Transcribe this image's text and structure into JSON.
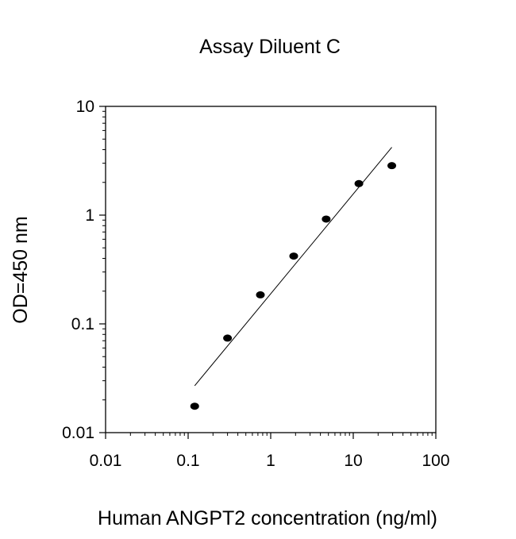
{
  "chart_data": {
    "type": "scatter",
    "title": "Assay Diluent C",
    "xlabel": "Human ANGPT2 concentration (ng/ml)",
    "ylabel": "OD=450 nm",
    "xscale": "log",
    "yscale": "log",
    "xlim": [
      0.01,
      100
    ],
    "ylim": [
      0.01,
      10
    ],
    "xticks": [
      0.01,
      0.1,
      1,
      10,
      100
    ],
    "xtick_labels": [
      "0.01",
      "0.1",
      "1",
      "10",
      "100"
    ],
    "yticks": [
      0.01,
      0.1,
      1,
      10
    ],
    "ytick_labels": [
      "0.01",
      "0.1",
      "1",
      "10"
    ],
    "grid": false,
    "legend": "none",
    "series": [
      {
        "points": [
          {
            "x": 0.12,
            "y": 0.0175
          },
          {
            "x": 0.3,
            "y": 0.074
          },
          {
            "x": 0.75,
            "y": 0.185
          },
          {
            "x": 1.9,
            "y": 0.42
          },
          {
            "x": 4.7,
            "y": 0.92
          },
          {
            "x": 11.7,
            "y": 1.95
          },
          {
            "x": 29.3,
            "y": 2.85
          }
        ],
        "color": "#000000"
      }
    ],
    "fit_line": {
      "x": [
        0.12,
        29.3
      ],
      "y": [
        0.027,
        4.2
      ],
      "color": "#000000"
    }
  }
}
